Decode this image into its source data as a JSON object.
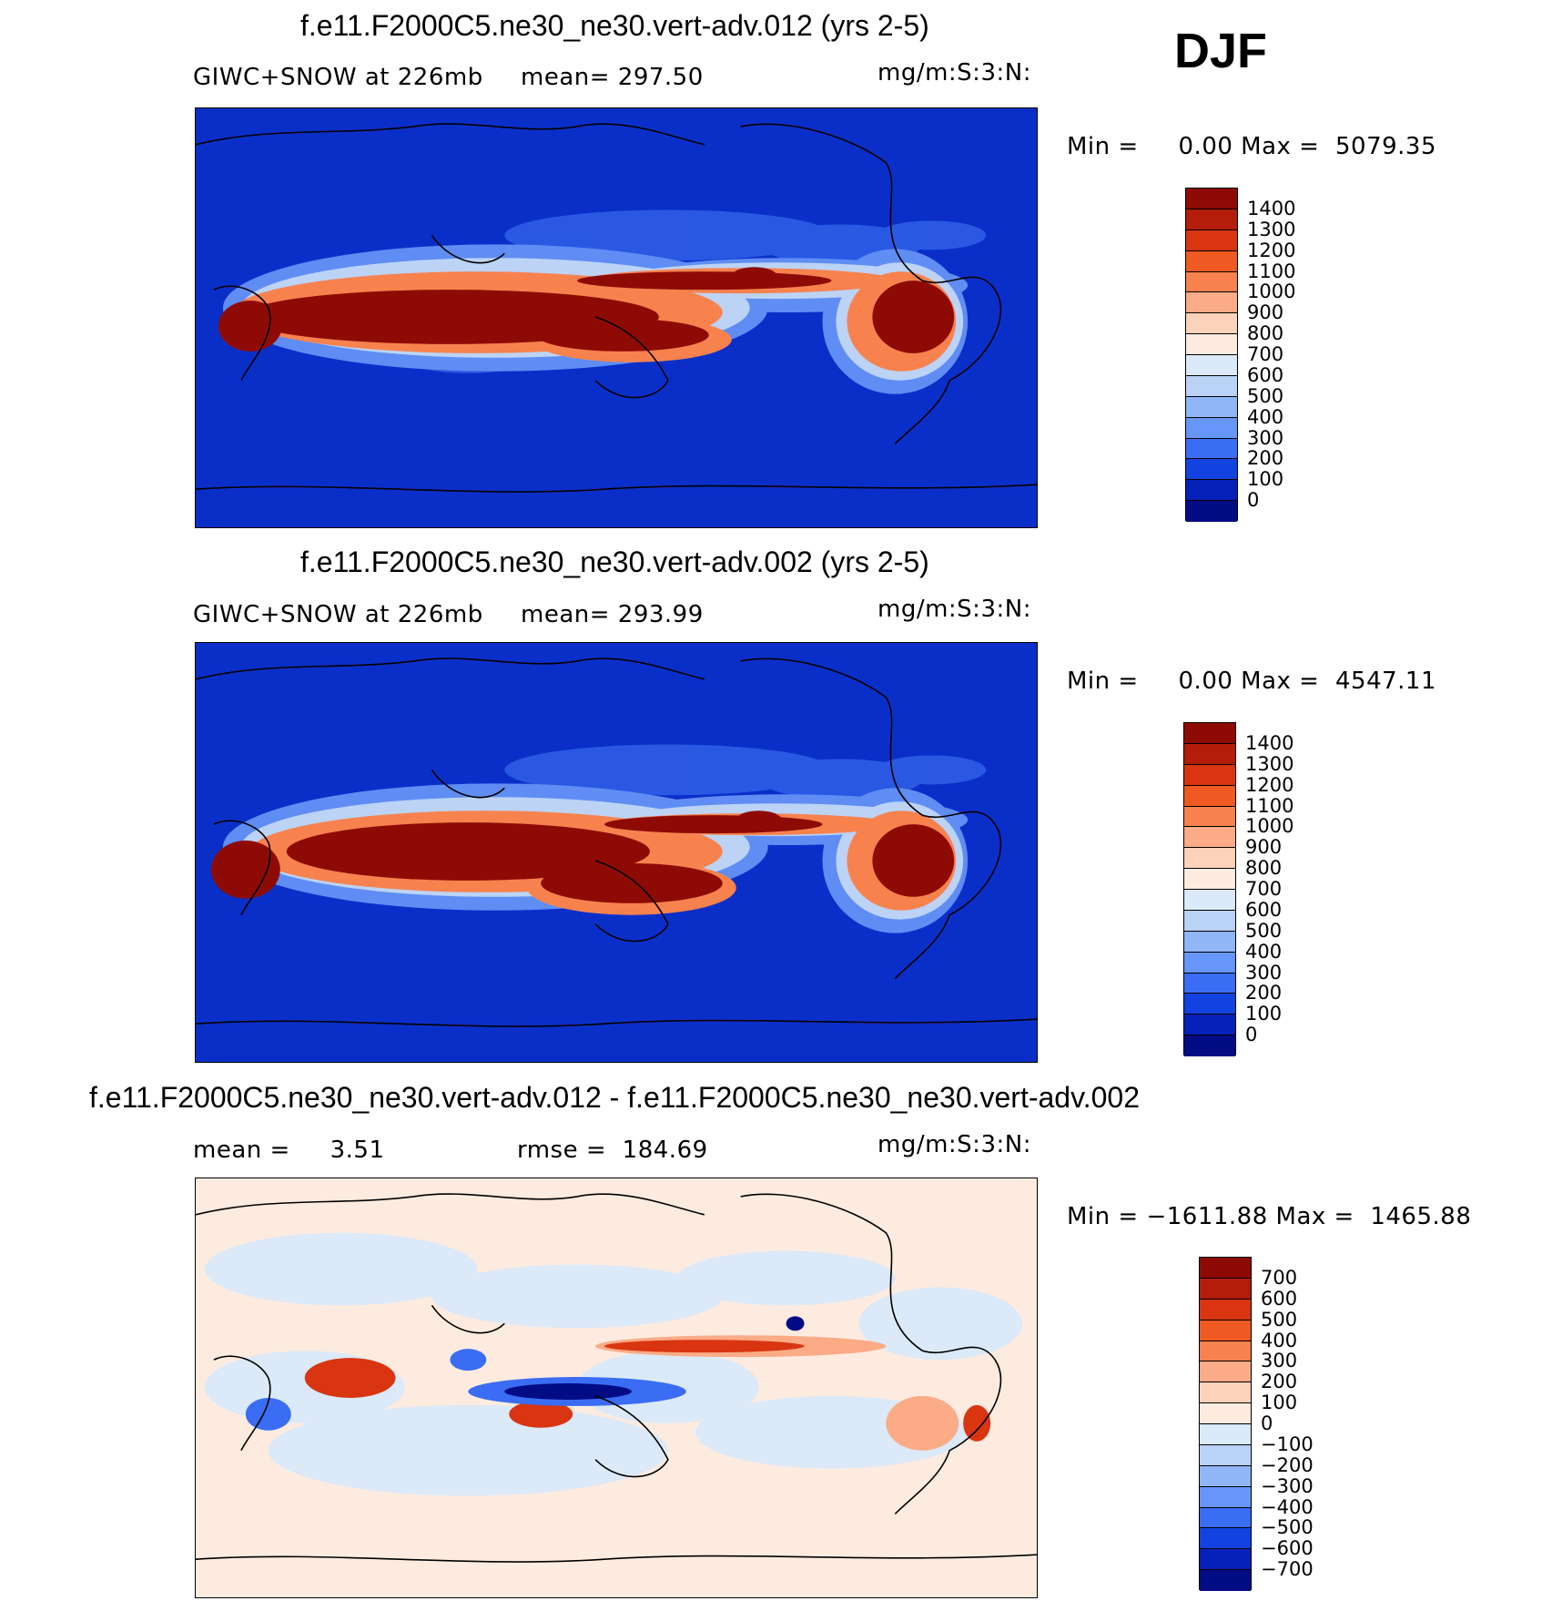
{
  "season": "DJF",
  "panels": [
    {
      "title": "f.e11.F2000C5.ne30_ne30.vert-adv.012 (yrs 2-5)",
      "left_label": "GIWC+SNOW at 226mb",
      "center_label": "mean= 297.50",
      "units": "mg/m:S:3:N:",
      "minmax": "Min =     0.00 Max =  5079.35",
      "colorbar": {
        "labels": [
          "1400",
          "1300",
          "1200",
          "1100",
          "1000",
          "900",
          "800",
          "700",
          "600",
          "500",
          "400",
          "300",
          "200",
          "100",
          "0"
        ],
        "colors": [
          "#8e0b05",
          "#b31d0a",
          "#d93511",
          "#ef5a22",
          "#f7824e",
          "#fbab86",
          "#fdd2ba",
          "#fdebe0",
          "#dbe9f8",
          "#b9d2f6",
          "#91b6f7",
          "#6696f8",
          "#3a6df3",
          "#1242e0",
          "#0521b8",
          "#020c85"
        ]
      }
    },
    {
      "title": "f.e11.F2000C5.ne30_ne30.vert-adv.002 (yrs 2-5)",
      "left_label": "GIWC+SNOW at 226mb",
      "center_label": "mean= 293.99",
      "units": "mg/m:S:3:N:",
      "minmax": "Min =     0.00 Max =  4547.11",
      "colorbar": {
        "labels": [
          "1400",
          "1300",
          "1200",
          "1100",
          "1000",
          "900",
          "800",
          "700",
          "600",
          "500",
          "400",
          "300",
          "200",
          "100",
          "0"
        ],
        "colors": [
          "#8e0b05",
          "#b31d0a",
          "#d93511",
          "#ef5a22",
          "#f7824e",
          "#fbab86",
          "#fdd2ba",
          "#fdebe0",
          "#dbe9f8",
          "#b9d2f6",
          "#91b6f7",
          "#6696f8",
          "#3a6df3",
          "#1242e0",
          "#0521b8",
          "#020c85"
        ]
      }
    },
    {
      "title": "f.e11.F2000C5.ne30_ne30.vert-adv.012 - f.e11.F2000C5.ne30_ne30.vert-adv.002",
      "left_label": "mean =     3.51",
      "center_label": "rmse =  184.69",
      "units": "mg/m:S:3:N:",
      "minmax": "Min = −1611.88 Max =  1465.88",
      "colorbar": {
        "labels": [
          "700",
          "600",
          "500",
          "400",
          "300",
          "200",
          "100",
          "0",
          "−100",
          "−200",
          "−300",
          "−400",
          "−500",
          "−600",
          "−700"
        ],
        "colors": [
          "#8e0b05",
          "#b31d0a",
          "#d93511",
          "#ef5a22",
          "#f7824e",
          "#fbab86",
          "#fdd2ba",
          "#fdebe0",
          "#dbe9f8",
          "#b9d2f6",
          "#91b6f7",
          "#6696f8",
          "#3a6df3",
          "#1242e0",
          "#0521b8",
          "#020c85"
        ]
      }
    }
  ]
}
